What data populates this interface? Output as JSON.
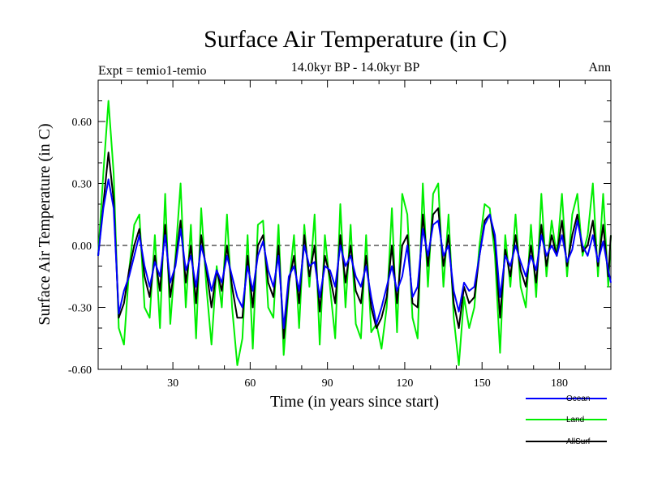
{
  "chart_data": {
    "type": "line",
    "title": "Surface Air Temperature (in C)",
    "subtitle": "14.0kyr BP - 14.0kyr BP",
    "left_label": "Expt = temio1-temio",
    "right_label": "Ann",
    "xlabel": "Time (in years since start)",
    "ylabel": "Surface Air Temperature (in C)",
    "xlim": [
      1,
      200
    ],
    "ylim": [
      -0.6,
      0.8
    ],
    "xticks": [
      30,
      60,
      90,
      120,
      150,
      180
    ],
    "xtick_labels": [
      "30",
      "60",
      "90",
      "120",
      "150",
      "180"
    ],
    "yticks": [
      -0.6,
      -0.3,
      0.0,
      0.3,
      0.6
    ],
    "ytick_labels": [
      "-0.60",
      "-0.30",
      "0.00",
      "0.30",
      "0.60"
    ],
    "zero_line": true,
    "legend_position": "bottom-right, below plot",
    "series": [
      {
        "name": "Ocean",
        "color": "#0000ff",
        "points": [
          [
            1,
            -0.05
          ],
          [
            3,
            0.18
          ],
          [
            5,
            0.32
          ],
          [
            7,
            0.18
          ],
          [
            9,
            -0.33
          ],
          [
            11,
            -0.22
          ],
          [
            13,
            -0.15
          ],
          [
            15,
            -0.05
          ],
          [
            17,
            0.05
          ],
          [
            19,
            -0.1
          ],
          [
            21,
            -0.2
          ],
          [
            23,
            -0.08
          ],
          [
            25,
            -0.15
          ],
          [
            27,
            0.05
          ],
          [
            29,
            -0.18
          ],
          [
            31,
            -0.1
          ],
          [
            33,
            0.08
          ],
          [
            35,
            -0.12
          ],
          [
            37,
            -0.05
          ],
          [
            39,
            -0.2
          ],
          [
            41,
            0.0
          ],
          [
            43,
            -0.1
          ],
          [
            45,
            -0.22
          ],
          [
            47,
            -0.12
          ],
          [
            49,
            -0.18
          ],
          [
            51,
            -0.05
          ],
          [
            53,
            -0.15
          ],
          [
            55,
            -0.25
          ],
          [
            57,
            -0.3
          ],
          [
            59,
            -0.1
          ],
          [
            61,
            -0.22
          ],
          [
            63,
            -0.05
          ],
          [
            65,
            0.02
          ],
          [
            67,
            -0.12
          ],
          [
            69,
            -0.2
          ],
          [
            71,
            -0.05
          ],
          [
            73,
            -0.4
          ],
          [
            75,
            -0.15
          ],
          [
            77,
            -0.1
          ],
          [
            79,
            -0.22
          ],
          [
            81,
            0.0
          ],
          [
            83,
            -0.1
          ],
          [
            85,
            -0.08
          ],
          [
            87,
            -0.25
          ],
          [
            89,
            -0.1
          ],
          [
            91,
            -0.12
          ],
          [
            93,
            -0.2
          ],
          [
            95,
            0.0
          ],
          [
            97,
            -0.1
          ],
          [
            99,
            -0.05
          ],
          [
            101,
            -0.15
          ],
          [
            103,
            -0.2
          ],
          [
            105,
            -0.1
          ],
          [
            107,
            -0.25
          ],
          [
            109,
            -0.38
          ],
          [
            111,
            -0.3
          ],
          [
            113,
            -0.2
          ],
          [
            115,
            -0.1
          ],
          [
            117,
            -0.22
          ],
          [
            119,
            -0.15
          ],
          [
            121,
            0.0
          ],
          [
            123,
            -0.25
          ],
          [
            125,
            -0.2
          ],
          [
            127,
            0.08
          ],
          [
            129,
            -0.05
          ],
          [
            131,
            0.1
          ],
          [
            133,
            0.12
          ],
          [
            135,
            -0.05
          ],
          [
            137,
            0.0
          ],
          [
            139,
            -0.22
          ],
          [
            141,
            -0.32
          ],
          [
            143,
            -0.18
          ],
          [
            145,
            -0.22
          ],
          [
            147,
            -0.2
          ],
          [
            149,
            -0.05
          ],
          [
            151,
            0.1
          ],
          [
            153,
            0.15
          ],
          [
            155,
            0.05
          ],
          [
            157,
            -0.25
          ],
          [
            159,
            -0.05
          ],
          [
            161,
            -0.1
          ],
          [
            163,
            0.0
          ],
          [
            165,
            -0.08
          ],
          [
            167,
            -0.15
          ],
          [
            169,
            -0.05
          ],
          [
            171,
            -0.12
          ],
          [
            173,
            0.05
          ],
          [
            175,
            -0.05
          ],
          [
            177,
            0.0
          ],
          [
            179,
            -0.05
          ],
          [
            181,
            0.05
          ],
          [
            183,
            -0.08
          ],
          [
            185,
            -0.02
          ],
          [
            187,
            0.12
          ],
          [
            189,
            0.0
          ],
          [
            191,
            -0.05
          ],
          [
            193,
            0.05
          ],
          [
            195,
            -0.08
          ],
          [
            197,
            0.02
          ],
          [
            199,
            -0.12
          ],
          [
            200,
            -0.18
          ]
        ]
      },
      {
        "name": "Land",
        "color": "#00ee00",
        "points": [
          [
            1,
            -0.05
          ],
          [
            3,
            0.35
          ],
          [
            5,
            0.7
          ],
          [
            7,
            0.35
          ],
          [
            9,
            -0.4
          ],
          [
            11,
            -0.48
          ],
          [
            13,
            -0.12
          ],
          [
            15,
            0.1
          ],
          [
            17,
            0.15
          ],
          [
            19,
            -0.3
          ],
          [
            21,
            -0.35
          ],
          [
            23,
            0.05
          ],
          [
            25,
            -0.4
          ],
          [
            27,
            0.25
          ],
          [
            29,
            -0.38
          ],
          [
            31,
            -0.05
          ],
          [
            33,
            0.3
          ],
          [
            35,
            -0.3
          ],
          [
            37,
            0.1
          ],
          [
            39,
            -0.45
          ],
          [
            41,
            0.18
          ],
          [
            43,
            -0.2
          ],
          [
            45,
            -0.48
          ],
          [
            47,
            -0.1
          ],
          [
            49,
            -0.3
          ],
          [
            51,
            0.15
          ],
          [
            53,
            -0.3
          ],
          [
            55,
            -0.58
          ],
          [
            57,
            -0.45
          ],
          [
            59,
            0.05
          ],
          [
            61,
            -0.5
          ],
          [
            63,
            0.1
          ],
          [
            65,
            0.12
          ],
          [
            67,
            -0.3
          ],
          [
            69,
            -0.35
          ],
          [
            71,
            0.1
          ],
          [
            73,
            -0.53
          ],
          [
            75,
            -0.2
          ],
          [
            77,
            0.05
          ],
          [
            79,
            -0.4
          ],
          [
            81,
            0.1
          ],
          [
            83,
            -0.2
          ],
          [
            85,
            0.15
          ],
          [
            87,
            -0.48
          ],
          [
            89,
            0.05
          ],
          [
            91,
            -0.2
          ],
          [
            93,
            -0.45
          ],
          [
            95,
            0.2
          ],
          [
            97,
            -0.3
          ],
          [
            99,
            0.1
          ],
          [
            101,
            -0.38
          ],
          [
            103,
            -0.45
          ],
          [
            105,
            0.05
          ],
          [
            107,
            -0.42
          ],
          [
            109,
            -0.38
          ],
          [
            111,
            -0.5
          ],
          [
            113,
            -0.3
          ],
          [
            115,
            0.18
          ],
          [
            117,
            -0.42
          ],
          [
            119,
            0.25
          ],
          [
            121,
            0.15
          ],
          [
            123,
            -0.35
          ],
          [
            125,
            -0.45
          ],
          [
            127,
            0.3
          ],
          [
            129,
            -0.2
          ],
          [
            131,
            0.25
          ],
          [
            133,
            0.3
          ],
          [
            135,
            -0.2
          ],
          [
            137,
            0.15
          ],
          [
            139,
            -0.35
          ],
          [
            141,
            -0.58
          ],
          [
            143,
            -0.25
          ],
          [
            145,
            -0.4
          ],
          [
            147,
            -0.3
          ],
          [
            149,
            0.0
          ],
          [
            151,
            0.2
          ],
          [
            153,
            0.18
          ],
          [
            155,
            -0.05
          ],
          [
            157,
            -0.52
          ],
          [
            159,
            0.05
          ],
          [
            161,
            -0.2
          ],
          [
            163,
            0.15
          ],
          [
            165,
            -0.2
          ],
          [
            167,
            -0.3
          ],
          [
            169,
            0.1
          ],
          [
            171,
            -0.25
          ],
          [
            173,
            0.25
          ],
          [
            175,
            -0.15
          ],
          [
            177,
            0.12
          ],
          [
            179,
            -0.05
          ],
          [
            181,
            0.25
          ],
          [
            183,
            -0.15
          ],
          [
            185,
            0.15
          ],
          [
            187,
            0.25
          ],
          [
            189,
            -0.05
          ],
          [
            191,
            0.05
          ],
          [
            193,
            0.3
          ],
          [
            195,
            -0.15
          ],
          [
            197,
            0.25
          ],
          [
            199,
            -0.2
          ],
          [
            200,
            0.05
          ]
        ]
      },
      {
        "name": "AllSurf",
        "color": "#000000",
        "points": [
          [
            1,
            -0.05
          ],
          [
            3,
            0.2
          ],
          [
            5,
            0.45
          ],
          [
            7,
            0.22
          ],
          [
            9,
            -0.35
          ],
          [
            11,
            -0.28
          ],
          [
            13,
            -0.12
          ],
          [
            15,
            0.0
          ],
          [
            17,
            0.08
          ],
          [
            19,
            -0.15
          ],
          [
            21,
            -0.25
          ],
          [
            23,
            -0.05
          ],
          [
            25,
            -0.22
          ],
          [
            27,
            0.1
          ],
          [
            29,
            -0.25
          ],
          [
            31,
            -0.08
          ],
          [
            33,
            0.12
          ],
          [
            35,
            -0.18
          ],
          [
            37,
            0.0
          ],
          [
            39,
            -0.28
          ],
          [
            41,
            0.05
          ],
          [
            43,
            -0.12
          ],
          [
            45,
            -0.3
          ],
          [
            47,
            -0.12
          ],
          [
            49,
            -0.22
          ],
          [
            51,
            0.0
          ],
          [
            53,
            -0.2
          ],
          [
            55,
            -0.35
          ],
          [
            57,
            -0.35
          ],
          [
            59,
            -0.05
          ],
          [
            61,
            -0.3
          ],
          [
            63,
            0.0
          ],
          [
            65,
            0.05
          ],
          [
            67,
            -0.18
          ],
          [
            69,
            -0.25
          ],
          [
            71,
            0.0
          ],
          [
            73,
            -0.45
          ],
          [
            75,
            -0.18
          ],
          [
            77,
            -0.05
          ],
          [
            79,
            -0.28
          ],
          [
            81,
            0.05
          ],
          [
            83,
            -0.15
          ],
          [
            85,
            0.0
          ],
          [
            87,
            -0.32
          ],
          [
            89,
            -0.05
          ],
          [
            91,
            -0.15
          ],
          [
            93,
            -0.28
          ],
          [
            95,
            0.05
          ],
          [
            97,
            -0.18
          ],
          [
            99,
            0.0
          ],
          [
            101,
            -0.22
          ],
          [
            103,
            -0.28
          ],
          [
            105,
            -0.05
          ],
          [
            107,
            -0.3
          ],
          [
            109,
            -0.4
          ],
          [
            111,
            -0.35
          ],
          [
            113,
            -0.25
          ],
          [
            115,
            0.0
          ],
          [
            117,
            -0.28
          ],
          [
            119,
            0.0
          ],
          [
            121,
            0.05
          ],
          [
            123,
            -0.28
          ],
          [
            125,
            -0.3
          ],
          [
            127,
            0.15
          ],
          [
            129,
            -0.1
          ],
          [
            131,
            0.15
          ],
          [
            133,
            0.18
          ],
          [
            135,
            -0.1
          ],
          [
            137,
            0.05
          ],
          [
            139,
            -0.28
          ],
          [
            141,
            -0.4
          ],
          [
            143,
            -0.2
          ],
          [
            145,
            -0.28
          ],
          [
            147,
            -0.25
          ],
          [
            149,
            -0.05
          ],
          [
            151,
            0.12
          ],
          [
            153,
            0.15
          ],
          [
            155,
            0.02
          ],
          [
            157,
            -0.35
          ],
          [
            159,
            -0.02
          ],
          [
            161,
            -0.15
          ],
          [
            163,
            0.05
          ],
          [
            165,
            -0.12
          ],
          [
            167,
            -0.2
          ],
          [
            169,
            0.0
          ],
          [
            171,
            -0.18
          ],
          [
            173,
            0.1
          ],
          [
            175,
            -0.1
          ],
          [
            177,
            0.05
          ],
          [
            179,
            -0.05
          ],
          [
            181,
            0.12
          ],
          [
            183,
            -0.1
          ],
          [
            185,
            0.05
          ],
          [
            187,
            0.15
          ],
          [
            189,
            -0.03
          ],
          [
            191,
            0.0
          ],
          [
            193,
            0.12
          ],
          [
            195,
            -0.1
          ],
          [
            197,
            0.1
          ],
          [
            199,
            -0.15
          ],
          [
            200,
            0.05
          ]
        ]
      }
    ]
  }
}
